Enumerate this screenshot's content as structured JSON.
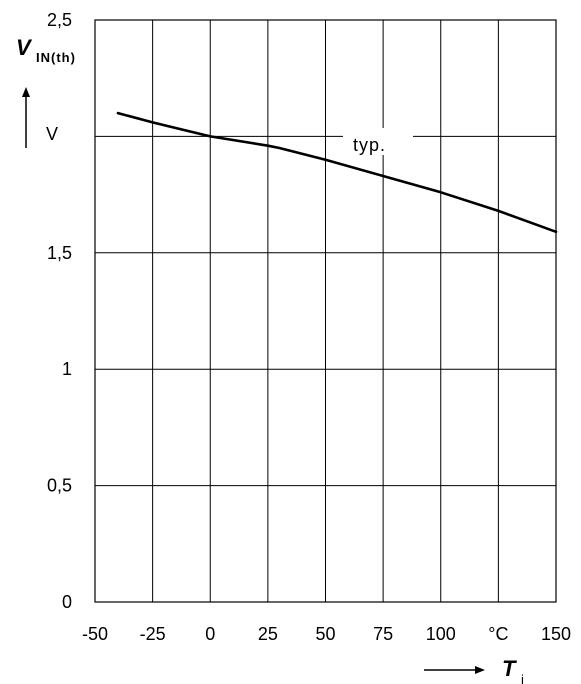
{
  "chart_data": {
    "type": "line",
    "title": "",
    "x": [
      -40,
      -25,
      0,
      25,
      30,
      50,
      75,
      100,
      125,
      150
    ],
    "series": [
      {
        "values": [
          2.1,
          2.06,
          2.0,
          1.96,
          1.95,
          1.9,
          1.83,
          1.76,
          1.68,
          1.59
        ]
      }
    ],
    "xlim": [
      -50,
      150
    ],
    "ylim": [
      0,
      2.5
    ],
    "x_ticks": [
      "-50",
      "-25",
      "0",
      "25",
      "50",
      "75",
      "100",
      "°C",
      "150"
    ],
    "y_ticks": [
      "0",
      "0,5",
      "1",
      "1,5",
      "",
      "2,5"
    ],
    "ylabel_symbol": "V",
    "ylabel_subscript": "IN(th)",
    "ylabel_unit": "V",
    "xlabel_symbol": "T",
    "xlabel_subscript": "j",
    "annotation": "typ.",
    "grid": true
  }
}
